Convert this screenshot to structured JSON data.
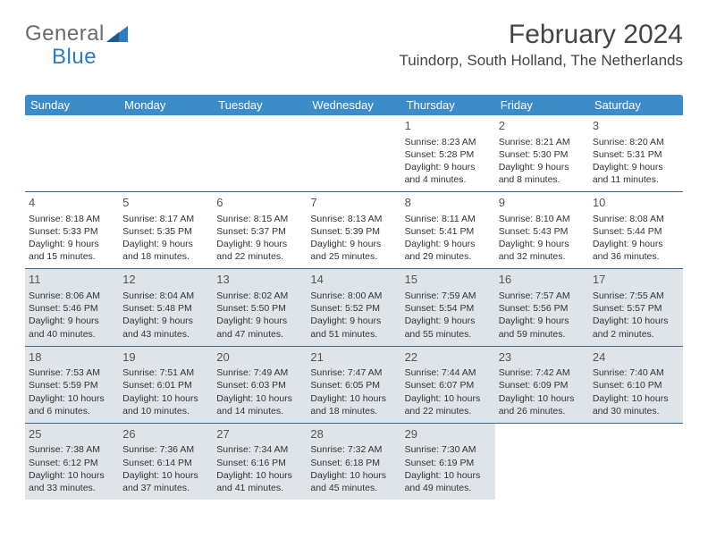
{
  "logo": {
    "general": "General",
    "blue": "Blue"
  },
  "title": "February 2024",
  "location": "Tuindorp, South Holland, The Netherlands",
  "colors": {
    "header_bg": "#3b8cc9",
    "header_text": "#ffffff",
    "border": "#3b6a8f",
    "shaded": "#dfe4e8",
    "text": "#333333",
    "logo_gray": "#6b6b6b",
    "logo_blue": "#2b7cc0"
  },
  "day_names": [
    "Sunday",
    "Monday",
    "Tuesday",
    "Wednesday",
    "Thursday",
    "Friday",
    "Saturday"
  ],
  "weeks": [
    [
      {
        "day": "",
        "sunrise": "",
        "sunset": "",
        "daylight": "",
        "shaded": false
      },
      {
        "day": "",
        "sunrise": "",
        "sunset": "",
        "daylight": "",
        "shaded": false
      },
      {
        "day": "",
        "sunrise": "",
        "sunset": "",
        "daylight": "",
        "shaded": false
      },
      {
        "day": "",
        "sunrise": "",
        "sunset": "",
        "daylight": "",
        "shaded": false
      },
      {
        "day": "1",
        "sunrise": "Sunrise: 8:23 AM",
        "sunset": "Sunset: 5:28 PM",
        "daylight": "Daylight: 9 hours and 4 minutes.",
        "shaded": false
      },
      {
        "day": "2",
        "sunrise": "Sunrise: 8:21 AM",
        "sunset": "Sunset: 5:30 PM",
        "daylight": "Daylight: 9 hours and 8 minutes.",
        "shaded": false
      },
      {
        "day": "3",
        "sunrise": "Sunrise: 8:20 AM",
        "sunset": "Sunset: 5:31 PM",
        "daylight": "Daylight: 9 hours and 11 minutes.",
        "shaded": false
      }
    ],
    [
      {
        "day": "4",
        "sunrise": "Sunrise: 8:18 AM",
        "sunset": "Sunset: 5:33 PM",
        "daylight": "Daylight: 9 hours and 15 minutes.",
        "shaded": false
      },
      {
        "day": "5",
        "sunrise": "Sunrise: 8:17 AM",
        "sunset": "Sunset: 5:35 PM",
        "daylight": "Daylight: 9 hours and 18 minutes.",
        "shaded": false
      },
      {
        "day": "6",
        "sunrise": "Sunrise: 8:15 AM",
        "sunset": "Sunset: 5:37 PM",
        "daylight": "Daylight: 9 hours and 22 minutes.",
        "shaded": false
      },
      {
        "day": "7",
        "sunrise": "Sunrise: 8:13 AM",
        "sunset": "Sunset: 5:39 PM",
        "daylight": "Daylight: 9 hours and 25 minutes.",
        "shaded": false
      },
      {
        "day": "8",
        "sunrise": "Sunrise: 8:11 AM",
        "sunset": "Sunset: 5:41 PM",
        "daylight": "Daylight: 9 hours and 29 minutes.",
        "shaded": false
      },
      {
        "day": "9",
        "sunrise": "Sunrise: 8:10 AM",
        "sunset": "Sunset: 5:43 PM",
        "daylight": "Daylight: 9 hours and 32 minutes.",
        "shaded": false
      },
      {
        "day": "10",
        "sunrise": "Sunrise: 8:08 AM",
        "sunset": "Sunset: 5:44 PM",
        "daylight": "Daylight: 9 hours and 36 minutes.",
        "shaded": false
      }
    ],
    [
      {
        "day": "11",
        "sunrise": "Sunrise: 8:06 AM",
        "sunset": "Sunset: 5:46 PM",
        "daylight": "Daylight: 9 hours and 40 minutes.",
        "shaded": true
      },
      {
        "day": "12",
        "sunrise": "Sunrise: 8:04 AM",
        "sunset": "Sunset: 5:48 PM",
        "daylight": "Daylight: 9 hours and 43 minutes.",
        "shaded": true
      },
      {
        "day": "13",
        "sunrise": "Sunrise: 8:02 AM",
        "sunset": "Sunset: 5:50 PM",
        "daylight": "Daylight: 9 hours and 47 minutes.",
        "shaded": true
      },
      {
        "day": "14",
        "sunrise": "Sunrise: 8:00 AM",
        "sunset": "Sunset: 5:52 PM",
        "daylight": "Daylight: 9 hours and 51 minutes.",
        "shaded": true
      },
      {
        "day": "15",
        "sunrise": "Sunrise: 7:59 AM",
        "sunset": "Sunset: 5:54 PM",
        "daylight": "Daylight: 9 hours and 55 minutes.",
        "shaded": true
      },
      {
        "day": "16",
        "sunrise": "Sunrise: 7:57 AM",
        "sunset": "Sunset: 5:56 PM",
        "daylight": "Daylight: 9 hours and 59 minutes.",
        "shaded": true
      },
      {
        "day": "17",
        "sunrise": "Sunrise: 7:55 AM",
        "sunset": "Sunset: 5:57 PM",
        "daylight": "Daylight: 10 hours and 2 minutes.",
        "shaded": true
      }
    ],
    [
      {
        "day": "18",
        "sunrise": "Sunrise: 7:53 AM",
        "sunset": "Sunset: 5:59 PM",
        "daylight": "Daylight: 10 hours and 6 minutes.",
        "shaded": true
      },
      {
        "day": "19",
        "sunrise": "Sunrise: 7:51 AM",
        "sunset": "Sunset: 6:01 PM",
        "daylight": "Daylight: 10 hours and 10 minutes.",
        "shaded": true
      },
      {
        "day": "20",
        "sunrise": "Sunrise: 7:49 AM",
        "sunset": "Sunset: 6:03 PM",
        "daylight": "Daylight: 10 hours and 14 minutes.",
        "shaded": true
      },
      {
        "day": "21",
        "sunrise": "Sunrise: 7:47 AM",
        "sunset": "Sunset: 6:05 PM",
        "daylight": "Daylight: 10 hours and 18 minutes.",
        "shaded": true
      },
      {
        "day": "22",
        "sunrise": "Sunrise: 7:44 AM",
        "sunset": "Sunset: 6:07 PM",
        "daylight": "Daylight: 10 hours and 22 minutes.",
        "shaded": true
      },
      {
        "day": "23",
        "sunrise": "Sunrise: 7:42 AM",
        "sunset": "Sunset: 6:09 PM",
        "daylight": "Daylight: 10 hours and 26 minutes.",
        "shaded": true
      },
      {
        "day": "24",
        "sunrise": "Sunrise: 7:40 AM",
        "sunset": "Sunset: 6:10 PM",
        "daylight": "Daylight: 10 hours and 30 minutes.",
        "shaded": true
      }
    ],
    [
      {
        "day": "25",
        "sunrise": "Sunrise: 7:38 AM",
        "sunset": "Sunset: 6:12 PM",
        "daylight": "Daylight: 10 hours and 33 minutes.",
        "shaded": true
      },
      {
        "day": "26",
        "sunrise": "Sunrise: 7:36 AM",
        "sunset": "Sunset: 6:14 PM",
        "daylight": "Daylight: 10 hours and 37 minutes.",
        "shaded": true
      },
      {
        "day": "27",
        "sunrise": "Sunrise: 7:34 AM",
        "sunset": "Sunset: 6:16 PM",
        "daylight": "Daylight: 10 hours and 41 minutes.",
        "shaded": true
      },
      {
        "day": "28",
        "sunrise": "Sunrise: 7:32 AM",
        "sunset": "Sunset: 6:18 PM",
        "daylight": "Daylight: 10 hours and 45 minutes.",
        "shaded": true
      },
      {
        "day": "29",
        "sunrise": "Sunrise: 7:30 AM",
        "sunset": "Sunset: 6:19 PM",
        "daylight": "Daylight: 10 hours and 49 minutes.",
        "shaded": true
      },
      {
        "day": "",
        "sunrise": "",
        "sunset": "",
        "daylight": "",
        "shaded": false
      },
      {
        "day": "",
        "sunrise": "",
        "sunset": "",
        "daylight": "",
        "shaded": false
      }
    ]
  ]
}
